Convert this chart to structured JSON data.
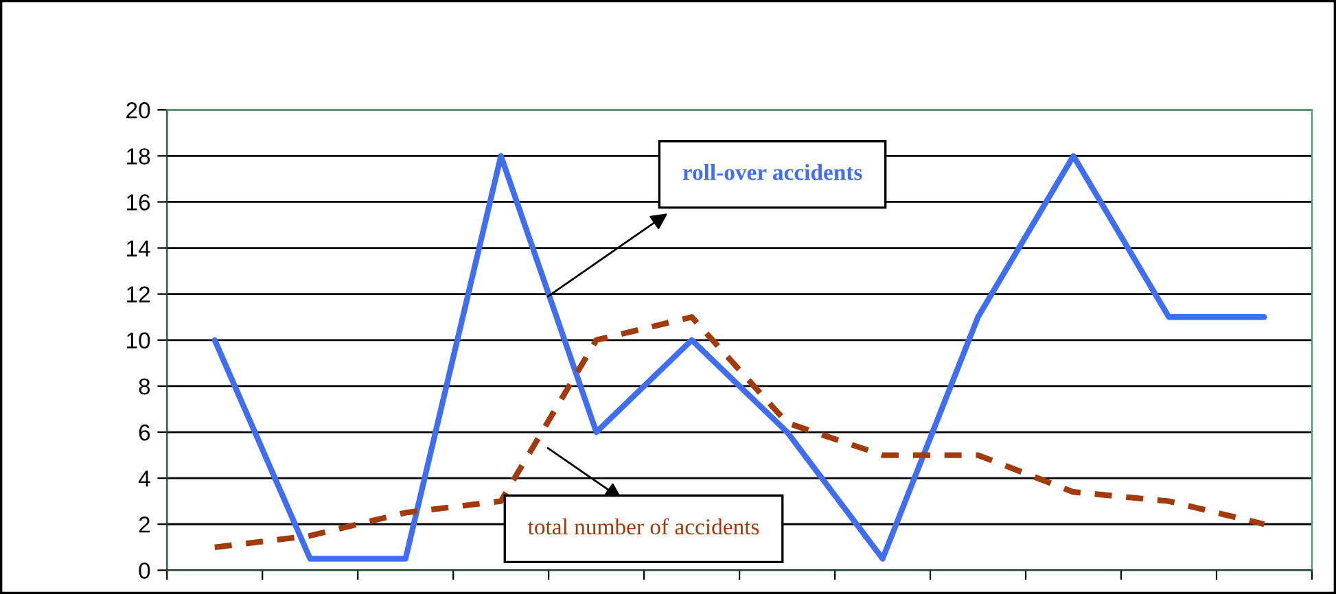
{
  "chart_data": {
    "type": "line",
    "categories": [
      null,
      null,
      null,
      null,
      null,
      null,
      null,
      null,
      null,
      null,
      null,
      null
    ],
    "series": [
      {
        "name": "roll-over accidents",
        "color": "#3f6ef5",
        "line_style": "solid",
        "values": [
          10,
          0.5,
          0.5,
          18,
          6,
          10,
          6,
          0.5,
          11,
          18,
          11,
          11
        ]
      },
      {
        "name": "total number of accidents",
        "color": "#a33a0a",
        "line_style": "dashed",
        "values": [
          1,
          1.5,
          2.5,
          3,
          10,
          11,
          6.4,
          5,
          5,
          3.4,
          3,
          2
        ]
      }
    ],
    "ylim": [
      0,
      20
    ],
    "yticks": [
      0,
      2,
      4,
      6,
      8,
      10,
      12,
      14,
      16,
      18,
      20
    ],
    "grid": "y",
    "legend": false,
    "marker": "none"
  }
}
